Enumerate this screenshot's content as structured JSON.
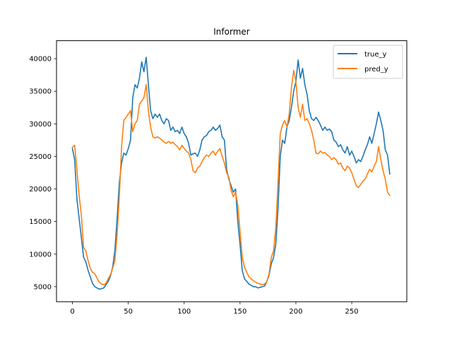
{
  "chart_data": {
    "type": "line",
    "title": "Informer",
    "xlabel": "",
    "ylabel": "",
    "xlim": [
      -14.25,
      299.25
    ],
    "ylim": [
      2690,
      42760
    ],
    "x_ticks": [
      0,
      50,
      100,
      150,
      200,
      250
    ],
    "y_ticks": [
      5000,
      10000,
      15000,
      20000,
      25000,
      30000,
      35000,
      40000
    ],
    "grid": false,
    "legend": "top-right",
    "colors": {
      "true_y": "#1f77b4",
      "pred_y": "#ff7f0e"
    },
    "series": [
      {
        "name": "true_y",
        "points": [
          [
            0,
            26200
          ],
          [
            2,
            24500
          ],
          [
            4,
            18500
          ],
          [
            6,
            15500
          ],
          [
            8,
            12500
          ],
          [
            10,
            9500
          ],
          [
            12,
            8800
          ],
          [
            14,
            7500
          ],
          [
            16,
            6500
          ],
          [
            18,
            5500
          ],
          [
            20,
            5000
          ],
          [
            22,
            4800
          ],
          [
            24,
            4600
          ],
          [
            26,
            4700
          ],
          [
            28,
            4800
          ],
          [
            30,
            5300
          ],
          [
            32,
            5800
          ],
          [
            34,
            6600
          ],
          [
            36,
            8000
          ],
          [
            38,
            10500
          ],
          [
            40,
            15500
          ],
          [
            42,
            21000
          ],
          [
            44,
            24000
          ],
          [
            46,
            25500
          ],
          [
            48,
            25200
          ],
          [
            50,
            26200
          ],
          [
            52,
            27500
          ],
          [
            54,
            34000
          ],
          [
            56,
            36000
          ],
          [
            58,
            35500
          ],
          [
            60,
            37000
          ],
          [
            62,
            39500
          ],
          [
            64,
            38000
          ],
          [
            66,
            40200
          ],
          [
            68,
            36000
          ],
          [
            70,
            32000
          ],
          [
            72,
            30800
          ],
          [
            74,
            31500
          ],
          [
            76,
            31000
          ],
          [
            78,
            31500
          ],
          [
            80,
            30500
          ],
          [
            82,
            30000
          ],
          [
            84,
            30800
          ],
          [
            86,
            30500
          ],
          [
            88,
            29000
          ],
          [
            90,
            29500
          ],
          [
            92,
            28800
          ],
          [
            94,
            29000
          ],
          [
            96,
            28500
          ],
          [
            98,
            29500
          ],
          [
            100,
            28500
          ],
          [
            102,
            28000
          ],
          [
            104,
            27000
          ],
          [
            106,
            25200
          ],
          [
            108,
            25400
          ],
          [
            110,
            25500
          ],
          [
            112,
            25000
          ],
          [
            114,
            26000
          ],
          [
            116,
            27500
          ],
          [
            118,
            28000
          ],
          [
            120,
            28200
          ],
          [
            122,
            28800
          ],
          [
            124,
            29000
          ],
          [
            126,
            29500
          ],
          [
            128,
            29000
          ],
          [
            130,
            29300
          ],
          [
            132,
            29800
          ],
          [
            134,
            28000
          ],
          [
            136,
            27500
          ],
          [
            138,
            23000
          ],
          [
            140,
            21500
          ],
          [
            142,
            20500
          ],
          [
            144,
            19500
          ],
          [
            146,
            20000
          ],
          [
            148,
            15000
          ],
          [
            150,
            11500
          ],
          [
            152,
            7500
          ],
          [
            154,
            6200
          ],
          [
            156,
            5800
          ],
          [
            158,
            5400
          ],
          [
            160,
            5200
          ],
          [
            162,
            5000
          ],
          [
            164,
            5000
          ],
          [
            166,
            4800
          ],
          [
            168,
            4900
          ],
          [
            170,
            5000
          ],
          [
            172,
            5100
          ],
          [
            174,
            5800
          ],
          [
            176,
            6800
          ],
          [
            178,
            8500
          ],
          [
            180,
            9500
          ],
          [
            182,
            11500
          ],
          [
            184,
            17000
          ],
          [
            186,
            25000
          ],
          [
            188,
            27500
          ],
          [
            190,
            27000
          ],
          [
            192,
            29500
          ],
          [
            194,
            30500
          ],
          [
            196,
            32500
          ],
          [
            198,
            35000
          ],
          [
            200,
            36500
          ],
          [
            202,
            39800
          ],
          [
            204,
            37000
          ],
          [
            206,
            38500
          ],
          [
            208,
            36000
          ],
          [
            210,
            34500
          ],
          [
            212,
            32000
          ],
          [
            214,
            30800
          ],
          [
            216,
            30500
          ],
          [
            218,
            31000
          ],
          [
            220,
            30500
          ],
          [
            222,
            29800
          ],
          [
            224,
            29000
          ],
          [
            226,
            29500
          ],
          [
            228,
            29000
          ],
          [
            230,
            29200
          ],
          [
            232,
            28800
          ],
          [
            234,
            27500
          ],
          [
            236,
            27200
          ],
          [
            238,
            26500
          ],
          [
            240,
            26800
          ],
          [
            242,
            26000
          ],
          [
            244,
            25500
          ],
          [
            246,
            26500
          ],
          [
            248,
            25200
          ],
          [
            250,
            25800
          ],
          [
            252,
            25000
          ],
          [
            254,
            24000
          ],
          [
            256,
            24500
          ],
          [
            258,
            24200
          ],
          [
            260,
            25000
          ],
          [
            262,
            26000
          ],
          [
            264,
            26800
          ],
          [
            266,
            28000
          ],
          [
            268,
            27000
          ],
          [
            270,
            28500
          ],
          [
            272,
            30000
          ],
          [
            274,
            31800
          ],
          [
            276,
            30500
          ],
          [
            278,
            29000
          ],
          [
            280,
            26000
          ],
          [
            282,
            25200
          ],
          [
            284,
            22300
          ]
        ]
      },
      {
        "name": "pred_y",
        "points": [
          [
            0,
            26400
          ],
          [
            2,
            26700
          ],
          [
            4,
            23000
          ],
          [
            6,
            19000
          ],
          [
            8,
            16000
          ],
          [
            10,
            11000
          ],
          [
            12,
            10500
          ],
          [
            14,
            9000
          ],
          [
            16,
            7800
          ],
          [
            18,
            7200
          ],
          [
            20,
            7000
          ],
          [
            22,
            6300
          ],
          [
            24,
            5700
          ],
          [
            26,
            5400
          ],
          [
            28,
            5300
          ],
          [
            30,
            5500
          ],
          [
            32,
            6200
          ],
          [
            34,
            6800
          ],
          [
            36,
            7800
          ],
          [
            38,
            9000
          ],
          [
            40,
            13000
          ],
          [
            42,
            19000
          ],
          [
            44,
            26500
          ],
          [
            46,
            30500
          ],
          [
            48,
            31000
          ],
          [
            50,
            31500
          ],
          [
            52,
            32000
          ],
          [
            54,
            28800
          ],
          [
            56,
            30000
          ],
          [
            58,
            30500
          ],
          [
            60,
            33000
          ],
          [
            62,
            33500
          ],
          [
            64,
            34000
          ],
          [
            66,
            36000
          ],
          [
            68,
            32000
          ],
          [
            70,
            29500
          ],
          [
            72,
            28000
          ],
          [
            74,
            27800
          ],
          [
            76,
            28000
          ],
          [
            78,
            27800
          ],
          [
            80,
            27500
          ],
          [
            82,
            27200
          ],
          [
            84,
            27000
          ],
          [
            86,
            27300
          ],
          [
            88,
            27000
          ],
          [
            90,
            27200
          ],
          [
            92,
            26800
          ],
          [
            94,
            26500
          ],
          [
            96,
            26000
          ],
          [
            98,
            26700
          ],
          [
            100,
            26200
          ],
          [
            102,
            25800
          ],
          [
            104,
            25500
          ],
          [
            106,
            24500
          ],
          [
            108,
            22800
          ],
          [
            110,
            22500
          ],
          [
            112,
            23200
          ],
          [
            114,
            23500
          ],
          [
            116,
            24200
          ],
          [
            118,
            24800
          ],
          [
            120,
            25200
          ],
          [
            122,
            25000
          ],
          [
            124,
            25500
          ],
          [
            126,
            25800
          ],
          [
            128,
            25200
          ],
          [
            130,
            25800
          ],
          [
            132,
            26200
          ],
          [
            134,
            25000
          ],
          [
            136,
            24000
          ],
          [
            138,
            22500
          ],
          [
            140,
            21800
          ],
          [
            142,
            19800
          ],
          [
            144,
            18800
          ],
          [
            146,
            19500
          ],
          [
            148,
            17500
          ],
          [
            150,
            13500
          ],
          [
            152,
            9500
          ],
          [
            154,
            8000
          ],
          [
            156,
            7200
          ],
          [
            158,
            6500
          ],
          [
            160,
            6200
          ],
          [
            162,
            5900
          ],
          [
            164,
            5700
          ],
          [
            166,
            5500
          ],
          [
            168,
            5400
          ],
          [
            170,
            5300
          ],
          [
            172,
            5400
          ],
          [
            174,
            5800
          ],
          [
            176,
            7000
          ],
          [
            178,
            9500
          ],
          [
            180,
            10500
          ],
          [
            182,
            14000
          ],
          [
            184,
            21000
          ],
          [
            186,
            28500
          ],
          [
            188,
            29800
          ],
          [
            190,
            30500
          ],
          [
            192,
            29500
          ],
          [
            194,
            31500
          ],
          [
            196,
            35500
          ],
          [
            198,
            38200
          ],
          [
            200,
            36500
          ],
          [
            202,
            32500
          ],
          [
            204,
            31000
          ],
          [
            206,
            33000
          ],
          [
            208,
            30500
          ],
          [
            210,
            30800
          ],
          [
            212,
            30000
          ],
          [
            214,
            29000
          ],
          [
            216,
            27500
          ],
          [
            218,
            25500
          ],
          [
            220,
            25400
          ],
          [
            222,
            25800
          ],
          [
            224,
            25500
          ],
          [
            226,
            25600
          ],
          [
            228,
            25200
          ],
          [
            230,
            25000
          ],
          [
            232,
            24500
          ],
          [
            234,
            24800
          ],
          [
            236,
            24500
          ],
          [
            238,
            23800
          ],
          [
            240,
            24000
          ],
          [
            242,
            23200
          ],
          [
            244,
            22800
          ],
          [
            246,
            23500
          ],
          [
            248,
            23200
          ],
          [
            250,
            22500
          ],
          [
            252,
            21500
          ],
          [
            254,
            20500
          ],
          [
            256,
            20200
          ],
          [
            258,
            20700
          ],
          [
            260,
            21200
          ],
          [
            262,
            21500
          ],
          [
            264,
            22300
          ],
          [
            266,
            23000
          ],
          [
            268,
            22600
          ],
          [
            270,
            23500
          ],
          [
            272,
            24200
          ],
          [
            274,
            26500
          ],
          [
            276,
            24500
          ],
          [
            278,
            22800
          ],
          [
            280,
            21500
          ],
          [
            282,
            19500
          ],
          [
            284,
            19000
          ]
        ]
      }
    ]
  }
}
